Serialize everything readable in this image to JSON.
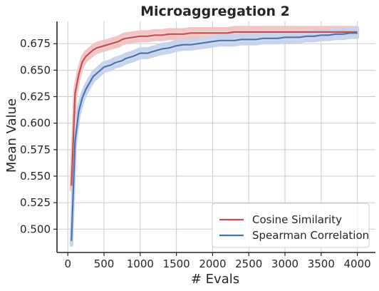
{
  "chart_data": {
    "type": "line",
    "title": "Microaggregation 2",
    "xlabel": "# Evals",
    "ylabel": "Mean Value",
    "xlim": [
      -150,
      4250
    ],
    "ylim": [
      0.478,
      0.696
    ],
    "xticks": [
      0,
      500,
      1000,
      1500,
      2000,
      2500,
      3000,
      3500,
      4000
    ],
    "yticks": [
      0.5,
      0.525,
      0.55,
      0.575,
      0.6,
      0.625,
      0.65,
      0.675
    ],
    "ytick_labels": [
      "0.500",
      "0.525",
      "0.550",
      "0.575",
      "0.600",
      "0.625",
      "0.650",
      "0.675"
    ],
    "grid": true,
    "legend_position": "lower-right",
    "x": [
      50,
      100,
      150,
      200,
      250,
      300,
      350,
      400,
      450,
      500,
      550,
      600,
      650,
      700,
      750,
      800,
      900,
      1000,
      1100,
      1200,
      1300,
      1400,
      1500,
      1600,
      1700,
      1800,
      1900,
      2000,
      2100,
      2200,
      2300,
      2400,
      2500,
      2600,
      2700,
      2800,
      2900,
      3000,
      3100,
      3200,
      3300,
      3400,
      3500,
      3600,
      3700,
      3800,
      3900,
      4000
    ],
    "series": [
      {
        "name": "Cosine Similarity",
        "color": "#c44e52",
        "band_color": "#f2c4c4",
        "values": [
          0.541,
          0.628,
          0.646,
          0.658,
          0.663,
          0.666,
          0.669,
          0.671,
          0.672,
          0.673,
          0.674,
          0.675,
          0.676,
          0.677,
          0.679,
          0.68,
          0.681,
          0.682,
          0.682,
          0.683,
          0.683,
          0.684,
          0.684,
          0.684,
          0.685,
          0.685,
          0.685,
          0.685,
          0.685,
          0.685,
          0.686,
          0.686,
          0.686,
          0.686,
          0.686,
          0.686,
          0.686,
          0.686,
          0.686,
          0.686,
          0.686,
          0.686,
          0.686,
          0.686,
          0.686,
          0.686,
          0.686,
          0.686
        ],
        "band": 0.004
      },
      {
        "name": "Spearman Correlation",
        "color": "#4c72b0",
        "band_color": "#c8d4ec",
        "values": [
          0.489,
          0.583,
          0.611,
          0.624,
          0.632,
          0.638,
          0.644,
          0.647,
          0.65,
          0.653,
          0.654,
          0.655,
          0.657,
          0.658,
          0.659,
          0.661,
          0.663,
          0.666,
          0.666,
          0.668,
          0.67,
          0.671,
          0.673,
          0.674,
          0.674,
          0.675,
          0.676,
          0.677,
          0.678,
          0.678,
          0.678,
          0.679,
          0.679,
          0.679,
          0.68,
          0.68,
          0.68,
          0.681,
          0.681,
          0.681,
          0.682,
          0.682,
          0.683,
          0.683,
          0.684,
          0.684,
          0.685,
          0.685
        ],
        "band": 0.004
      }
    ]
  }
}
